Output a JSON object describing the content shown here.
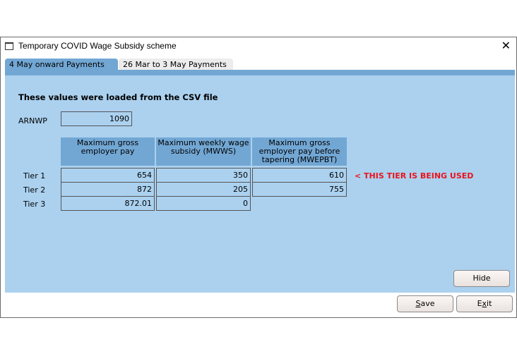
{
  "window": {
    "title": "Temporary COVID Wage Subsidy scheme",
    "close": "✕"
  },
  "tabs": [
    {
      "label": "4 May onward Payments",
      "active": true
    },
    {
      "label": "26 Mar to 3 May Payments",
      "active": false
    }
  ],
  "heading": "These values were loaded from the CSV file",
  "arnwp": {
    "label": "ARNWP",
    "value": "1090"
  },
  "table": {
    "columns": [
      "Maximum gross employer pay",
      "Maximum weekly wage subsidy (MWWS)",
      "Maximum gross employer pay before tapering (MWEPBT)"
    ],
    "rows": [
      {
        "label": "Tier 1",
        "values": [
          "654",
          "350",
          "610"
        ]
      },
      {
        "label": "Tier 2",
        "values": [
          "872",
          "205",
          "755"
        ]
      },
      {
        "label": "Tier 3",
        "values": [
          "872.01",
          "0"
        ]
      }
    ]
  },
  "warning": "< THIS TIER IS BEING USED",
  "colors": {
    "warning": "#e8141c",
    "panel": "#abd1ef",
    "header": "#72a7d4"
  },
  "buttons": {
    "hide": "Hide",
    "save": {
      "key": "S",
      "rest": "ave"
    },
    "exit": {
      "pre": "E",
      "key": "x",
      "rest": "it"
    }
  }
}
